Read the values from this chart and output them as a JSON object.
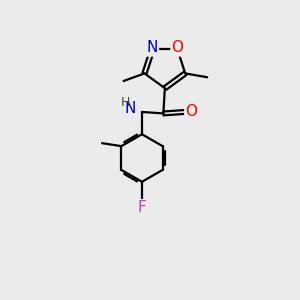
{
  "background_color": "#ebebeb",
  "figsize": [
    3.0,
    3.0
  ],
  "dpi": 100,
  "atom_colors": {
    "C": "#000000",
    "N": "#0000cc",
    "O": "#ff0000",
    "F": "#bb44bb",
    "H": "#444444"
  },
  "bond_color": "#000000",
  "bond_width": 1.6,
  "font_size": 11,
  "font_size_small": 9
}
